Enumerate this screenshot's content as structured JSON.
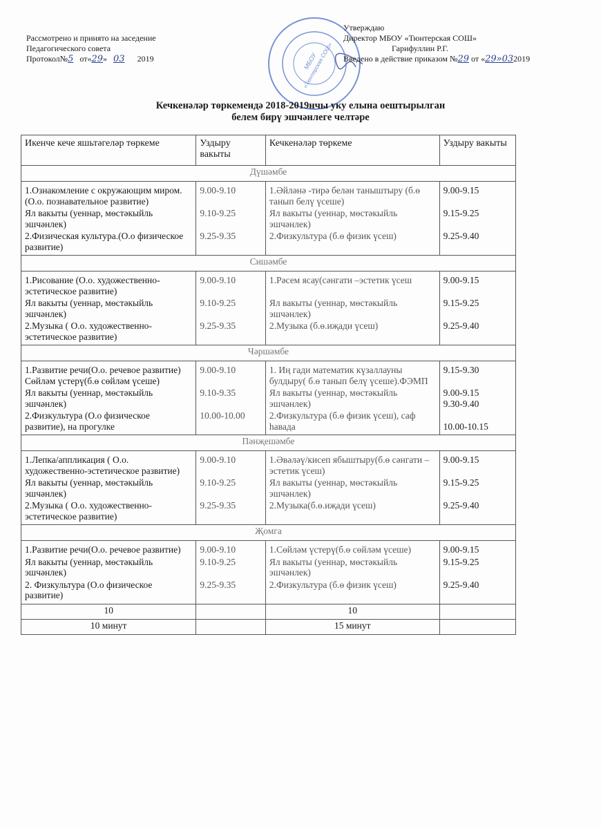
{
  "header_left": {
    "line1": "Рассмотрено и принято на заседение",
    "line2": "Педагогического совета",
    "line3_prefix": "Протокол№",
    "protocol_no": "5",
    "from": "от«",
    "day": "29",
    "close": "»",
    "month": "03",
    "year": "2019"
  },
  "header_right": {
    "line1": "Утверждаю",
    "line2": "Директор МБОУ «Тюнтерская СОШ»",
    "line3": "Гарифуллин Р.Г.",
    "line4_prefix": "Введено в действие приказом №",
    "order_no": "29",
    "from": "от «",
    "date_hand": "29»03",
    "year": "2019"
  },
  "stamp": {
    "text": "МБОУ «Тюнтерская СОШ»",
    "ring": "ИСПОЛНИТЕЛЬНЫЙ КОМИТЕТ БАЛТАСИНСКОГО МУНИЦИПАЛЬНОГО РАЙОНА РЕСПУБЛИКИ ТАТАРСТАН",
    "color": "#4a6fc9"
  },
  "title": {
    "line1": "Кечкенәләр төркемендә 2018-2019нчы уку елына оештырылган",
    "line2": "белем бирү эшчәнлеге челтәре"
  },
  "table": {
    "headers": [
      "Икенче кече яшьтәгеләр төркеме",
      "Уздыру вакыты",
      "Кечкенәләр төркеме",
      "Уздыру вакыты"
    ],
    "days": [
      {
        "name": "Дүшәмбе",
        "rows": [
          [
            "1.Ознакомление с окружающим миром. (О.о. познавательное развитие)",
            "9.00-9.10",
            "1.Әйләнә -тирә белән таныштыру (б.ө танып белү үсеше)",
            "9.00-9.15"
          ],
          [
            "Ял вакыты (уеннар, мөстәкыйль эшчәнлек)",
            "9.10-9.25",
            "Ял вакыты (уеннар, мөстәкыйль эшчәнлек)",
            "9.15-9.25"
          ],
          [
            "2.Физическая культура.(О.о физическое развитие)",
            "9.25-9.35",
            "2.Физкультура (б.ө физик үсеш)",
            "9.25-9.40"
          ]
        ]
      },
      {
        "name": "Сишәмбе",
        "rows": [
          [
            "1.Рисование (О.о. художественно-эстетическое развитие)",
            "9.00-9.10",
            "1.Рәсем ясау(сәнгати –эстетик үсеш",
            "9.00-9.15"
          ],
          [
            "Ял вакыты (уеннар, мөстәкыйль эшчәнлек)",
            "9.10-9.25",
            "Ял вакыты (уеннар, мөстәкыйль эшчәнлек)",
            "9.15-9.25"
          ],
          [
            "2.Музыка ( О.о. художественно-эстетическое развитие)",
            "9.25-9.35",
            "2.Музыка (б.ө.иҗади үсеш)",
            "9.25-9.40"
          ]
        ]
      },
      {
        "name": "Чәршәмбе",
        "rows": [
          [
            "1.Развитие речи(О.о. речевое развитие) Сөйләм үстерү(б.ө сөйләм үсеше)",
            "9.00-9.10",
            "1. Иң гади математик күзаллауны булдыру( б.ө танып белү үсеше).ФЭМП",
            "9.15-9.30"
          ],
          [
            "Ял вакыты (уеннар, мөстәкыйль эшчәнлек)",
            "9.10-9.35",
            "Ял вакыты (уеннар, мөстәкыйль эшчәнлек)",
            "9.00-9.15\n9.30-9.40"
          ],
          [
            "2.Физкультура (О.о физическое развитие), на прогулке",
            "10.00-10.00",
            "2.Физкультура (б.ө физик үсеш), саф һавада",
            "\n10.00-10.15"
          ]
        ]
      },
      {
        "name": "Пәнҗешәмбе",
        "rows": [
          [
            "1.Лепка/аппликация ( О.о. художественно-эстетическое развитие)",
            "9.00-9.10",
            "1.Әвәләү/кисеп ябыштыру(б.ө сәнгати –эстетик үсеш)",
            "9.00-9.15"
          ],
          [
            "Ял вакыты (уеннар, мөстәкыйль эшчәнлек)",
            "9.10-9.25",
            "Ял вакыты (уеннар, мөстәкыйль эшчәнлек)",
            "9.15-9.25"
          ],
          [
            "2.Музыка  ( О.о. художественно-эстетическое развитие)",
            "9.25-9.35",
            "2.Музыка(б.ө.иҗади үсеш)",
            "9.25-9.40"
          ]
        ]
      },
      {
        "name": "Җомга",
        "rows": [
          [
            "1.Развитие речи(О.о. речевое развитие)",
            "9.00-9.10",
            "1.Сөйләм үстерү(б.ө сөйләм үсеше)",
            "9.00-9.15"
          ],
          [
            "Ял вакыты (уеннар, мөстәкыйль эшчәнлек)",
            "9.10-9.25",
            "Ял вакыты (уеннар, мөстәкыйль эшчәнлек)",
            "9.15-9.25"
          ],
          [
            "2. Физкультура (О.о физическое развитие)",
            "9.25-9.35",
            "2.Физкультура   (б.ө физик үсеш)",
            "9.25-9.40"
          ]
        ]
      }
    ],
    "totals": [
      [
        "10",
        "",
        "10",
        ""
      ],
      [
        "10 минут",
        "",
        "15 минут",
        ""
      ]
    ]
  }
}
